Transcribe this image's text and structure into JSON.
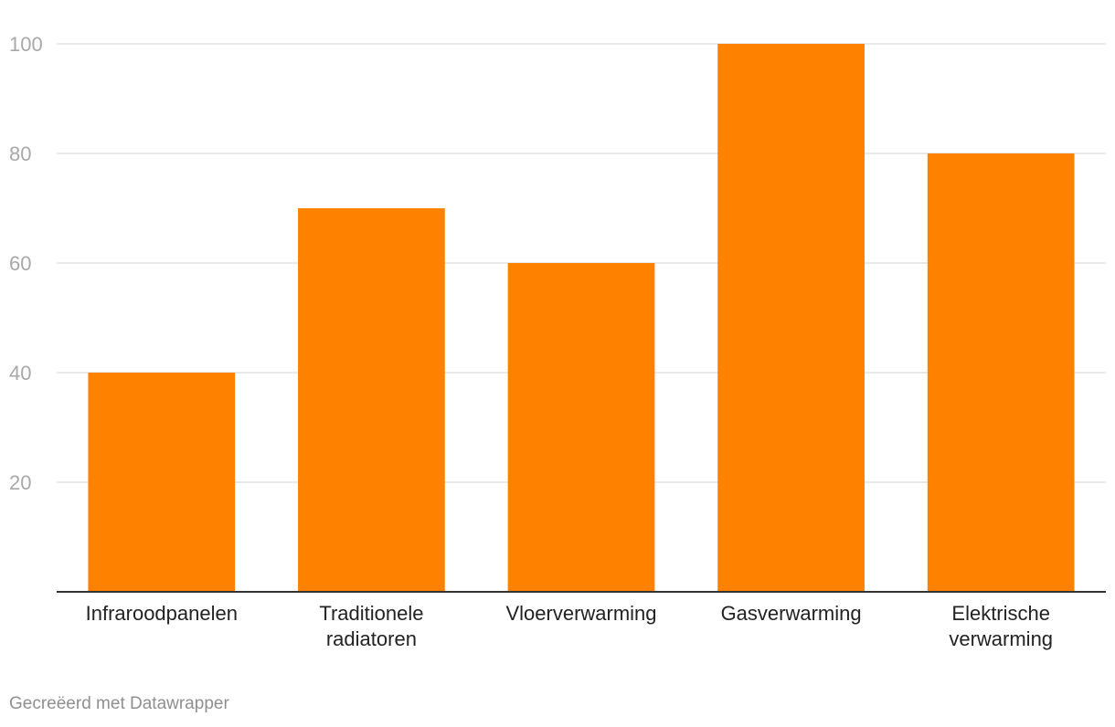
{
  "chart_data": {
    "type": "bar",
    "categories": [
      [
        "Infraroodpanelen"
      ],
      [
        "Traditionele",
        "radiatoren"
      ],
      [
        "Vloerverwarming"
      ],
      [
        "Gasverwarming"
      ],
      [
        "Elektrische",
        "verwarming"
      ]
    ],
    "values": [
      40,
      70,
      60,
      100,
      80
    ],
    "ylim": [
      0,
      100
    ],
    "yticks": [
      20,
      40,
      60,
      80,
      100
    ],
    "grid": true,
    "bar_color": "#fe8100"
  },
  "footer": {
    "credit": "Gecreëerd met Datawrapper"
  }
}
